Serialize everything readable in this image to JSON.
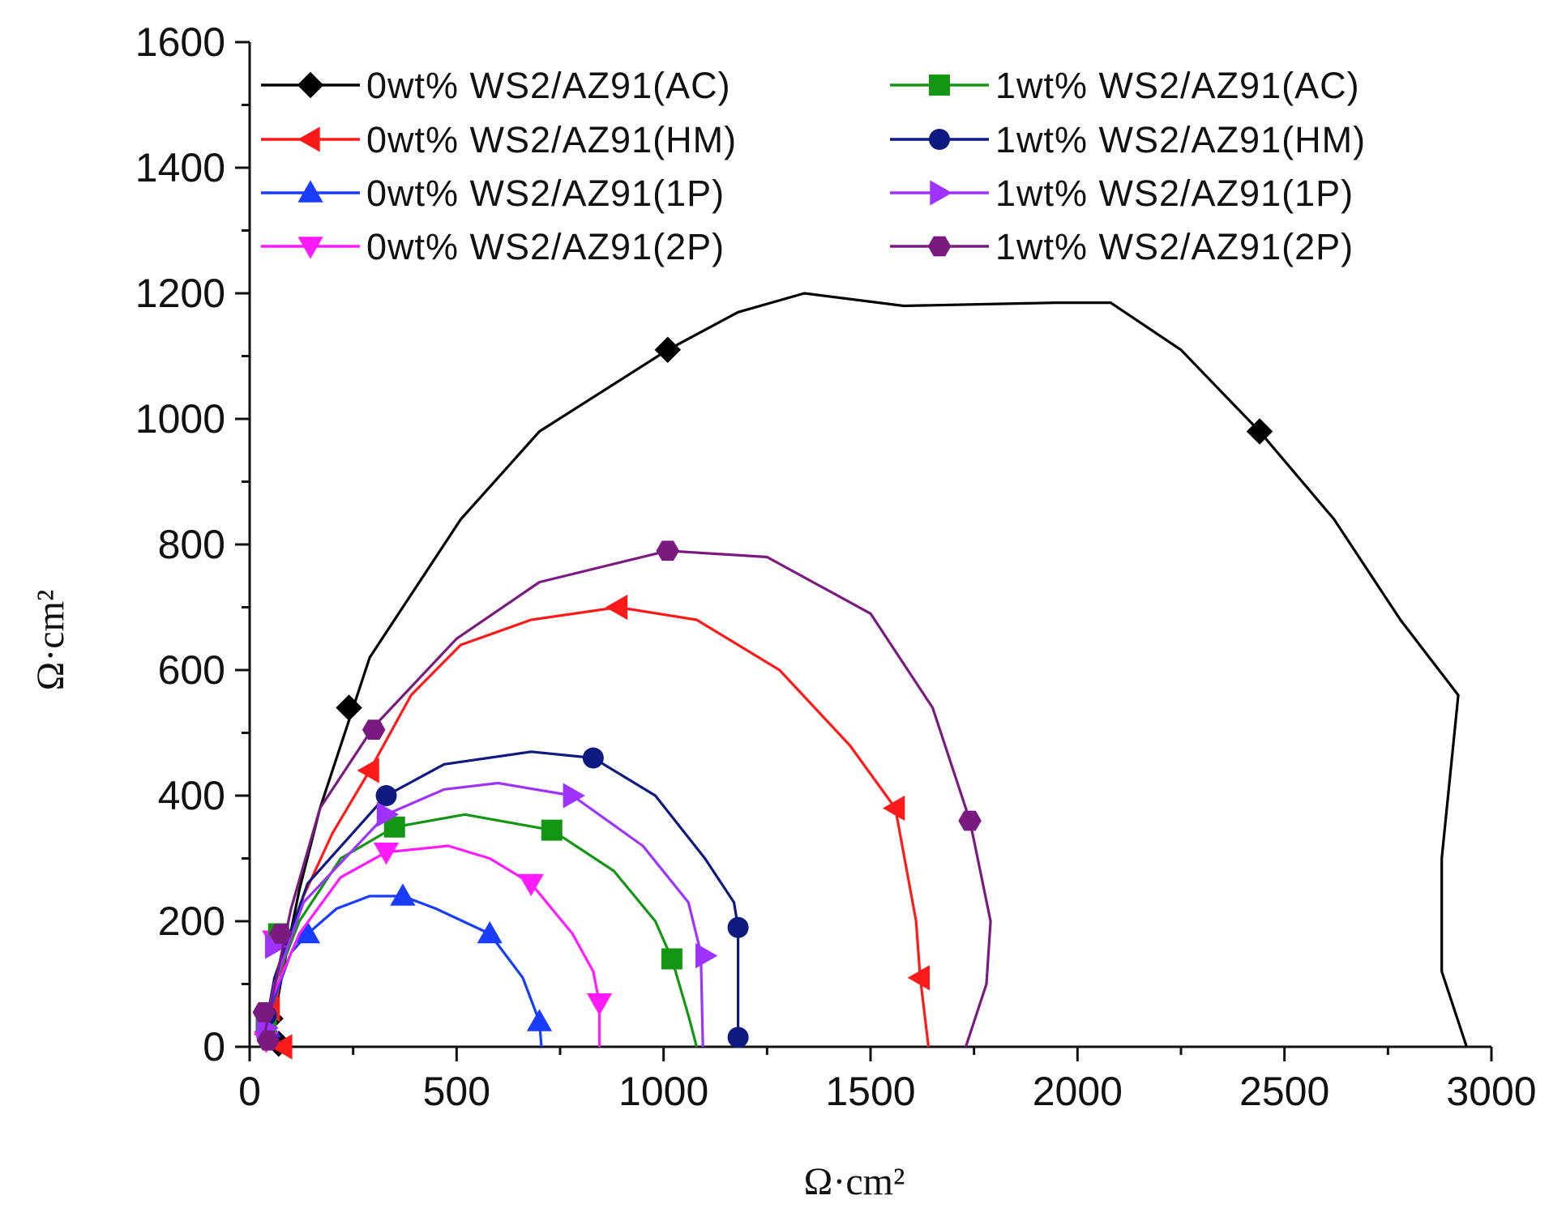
{
  "chart_data": {
    "type": "line",
    "title": "",
    "xlabel": "Ω·cm²",
    "ylabel": "Ω·cm²",
    "xlim": [
      0,
      3000
    ],
    "ylim": [
      0,
      1600
    ],
    "xticks": [
      0,
      500,
      1000,
      1500,
      2000,
      2500,
      3000
    ],
    "yticks": [
      0,
      200,
      400,
      600,
      800,
      1000,
      1200,
      1400,
      1600
    ],
    "grid": false,
    "legend_position": "top-left",
    "series": [
      {
        "name": "0wt% WS2/AZ91(AC)",
        "color": "#000000",
        "marker": "diamond",
        "points": [
          [
            40,
            0
          ],
          [
            55,
            30
          ],
          [
            80,
            120
          ],
          [
            120,
            250
          ],
          [
            170,
            380
          ],
          [
            240,
            520
          ],
          [
            290,
            620
          ],
          [
            370,
            700
          ],
          [
            510,
            840
          ],
          [
            700,
            980
          ],
          [
            1010,
            1110
          ],
          [
            1180,
            1170
          ],
          [
            1340,
            1200
          ],
          [
            1580,
            1180
          ],
          [
            1950,
            1185
          ],
          [
            2080,
            1185
          ],
          [
            2250,
            1110
          ],
          [
            2440,
            980
          ],
          [
            2620,
            840
          ],
          [
            2780,
            680
          ],
          [
            2920,
            560
          ],
          [
            2880,
            300
          ],
          [
            2880,
            120
          ],
          [
            2940,
            0
          ]
        ],
        "marker_points": [
          [
            240,
            540
          ],
          [
            1010,
            1110
          ],
          [
            2440,
            980
          ],
          [
            50,
            45
          ],
          [
            70,
            5
          ]
        ]
      },
      {
        "name": "0wt% WS2/AZ91(HM)",
        "color": "#ff1a1a",
        "marker": "triangle-left",
        "points": [
          [
            40,
            0
          ],
          [
            55,
            40
          ],
          [
            80,
            130
          ],
          [
            130,
            240
          ],
          [
            200,
            340
          ],
          [
            290,
            440
          ],
          [
            390,
            560
          ],
          [
            510,
            640
          ],
          [
            680,
            680
          ],
          [
            890,
            700
          ],
          [
            1080,
            680
          ],
          [
            1280,
            600
          ],
          [
            1450,
            480
          ],
          [
            1560,
            380
          ],
          [
            1610,
            200
          ],
          [
            1620,
            110
          ],
          [
            1640,
            0
          ]
        ],
        "marker_points": [
          [
            290,
            440
          ],
          [
            890,
            700
          ],
          [
            1560,
            380
          ],
          [
            1620,
            110
          ],
          [
            50,
            60
          ],
          [
            40,
            20
          ],
          [
            80,
            0
          ]
        ]
      },
      {
        "name": "0wt% WS2/AZ91(1P)",
        "color": "#1a3cff",
        "marker": "triangle-up",
        "points": [
          [
            30,
            0
          ],
          [
            50,
            60
          ],
          [
            100,
            150
          ],
          [
            140,
            180
          ],
          [
            210,
            220
          ],
          [
            290,
            240
          ],
          [
            370,
            240
          ],
          [
            450,
            220
          ],
          [
            580,
            180
          ],
          [
            660,
            110
          ],
          [
            700,
            40
          ],
          [
            705,
            0
          ]
        ],
        "marker_points": [
          [
            140,
            180
          ],
          [
            370,
            240
          ],
          [
            580,
            180
          ],
          [
            700,
            40
          ],
          [
            45,
            30
          ]
        ]
      },
      {
        "name": "0wt% WS2/AZ91(2P)",
        "color": "#ff1aff",
        "marker": "triangle-down",
        "points": [
          [
            30,
            0
          ],
          [
            55,
            80
          ],
          [
            120,
            180
          ],
          [
            220,
            270
          ],
          [
            330,
            310
          ],
          [
            480,
            320
          ],
          [
            580,
            300
          ],
          [
            680,
            260
          ],
          [
            780,
            180
          ],
          [
            830,
            120
          ],
          [
            845,
            70
          ],
          [
            845,
            0
          ]
        ],
        "marker_points": [
          [
            330,
            310
          ],
          [
            680,
            260
          ],
          [
            845,
            70
          ],
          [
            60,
            170
          ],
          [
            40,
            10
          ]
        ]
      },
      {
        "name": "1wt% WS2/AZ91(AC)",
        "color": "#149614",
        "marker": "square",
        "points": [
          [
            30,
            0
          ],
          [
            55,
            90
          ],
          [
            120,
            200
          ],
          [
            220,
            300
          ],
          [
            350,
            350
          ],
          [
            520,
            370
          ],
          [
            730,
            345
          ],
          [
            880,
            280
          ],
          [
            980,
            200
          ],
          [
            1020,
            140
          ],
          [
            1060,
            50
          ],
          [
            1080,
            0
          ]
        ],
        "marker_points": [
          [
            350,
            350
          ],
          [
            730,
            345
          ],
          [
            1020,
            140
          ],
          [
            70,
            180
          ],
          [
            40,
            40
          ]
        ]
      },
      {
        "name": "1wt% WS2/AZ91(HM)",
        "color": "#0f1a80",
        "marker": "circle",
        "points": [
          [
            30,
            0
          ],
          [
            60,
            110
          ],
          [
            140,
            260
          ],
          [
            330,
            400
          ],
          [
            470,
            450
          ],
          [
            680,
            470
          ],
          [
            830,
            460
          ],
          [
            980,
            400
          ],
          [
            1100,
            300
          ],
          [
            1170,
            230
          ],
          [
            1180,
            190
          ],
          [
            1180,
            20
          ],
          [
            1180,
            0
          ]
        ],
        "marker_points": [
          [
            330,
            400
          ],
          [
            830,
            460
          ],
          [
            1180,
            190
          ],
          [
            1180,
            15
          ],
          [
            40,
            50
          ]
        ]
      },
      {
        "name": "1wt% WS2/AZ91(1P)",
        "color": "#9e33ff",
        "marker": "triangle-right",
        "points": [
          [
            30,
            0
          ],
          [
            60,
            100
          ],
          [
            130,
            230
          ],
          [
            330,
            370
          ],
          [
            470,
            410
          ],
          [
            600,
            420
          ],
          [
            780,
            400
          ],
          [
            950,
            320
          ],
          [
            1060,
            230
          ],
          [
            1090,
            150
          ],
          [
            1095,
            0
          ]
        ],
        "marker_points": [
          [
            330,
            370
          ],
          [
            780,
            400
          ],
          [
            1100,
            145
          ],
          [
            60,
            160
          ],
          [
            40,
            30
          ]
        ]
      },
      {
        "name": "1wt% WS2/AZ91(2P)",
        "color": "#7a1a80",
        "marker": "hexagon",
        "points": [
          [
            30,
            0
          ],
          [
            55,
            80
          ],
          [
            100,
            220
          ],
          [
            170,
            380
          ],
          [
            300,
            510
          ],
          [
            500,
            650
          ],
          [
            700,
            740
          ],
          [
            1010,
            790
          ],
          [
            1250,
            780
          ],
          [
            1500,
            690
          ],
          [
            1650,
            540
          ],
          [
            1740,
            360
          ],
          [
            1790,
            200
          ],
          [
            1780,
            100
          ],
          [
            1730,
            0
          ]
        ],
        "marker_points": [
          [
            300,
            505
          ],
          [
            1010,
            790
          ],
          [
            1740,
            360
          ],
          [
            75,
            180
          ],
          [
            35,
            55
          ],
          [
            45,
            10
          ]
        ]
      }
    ]
  }
}
